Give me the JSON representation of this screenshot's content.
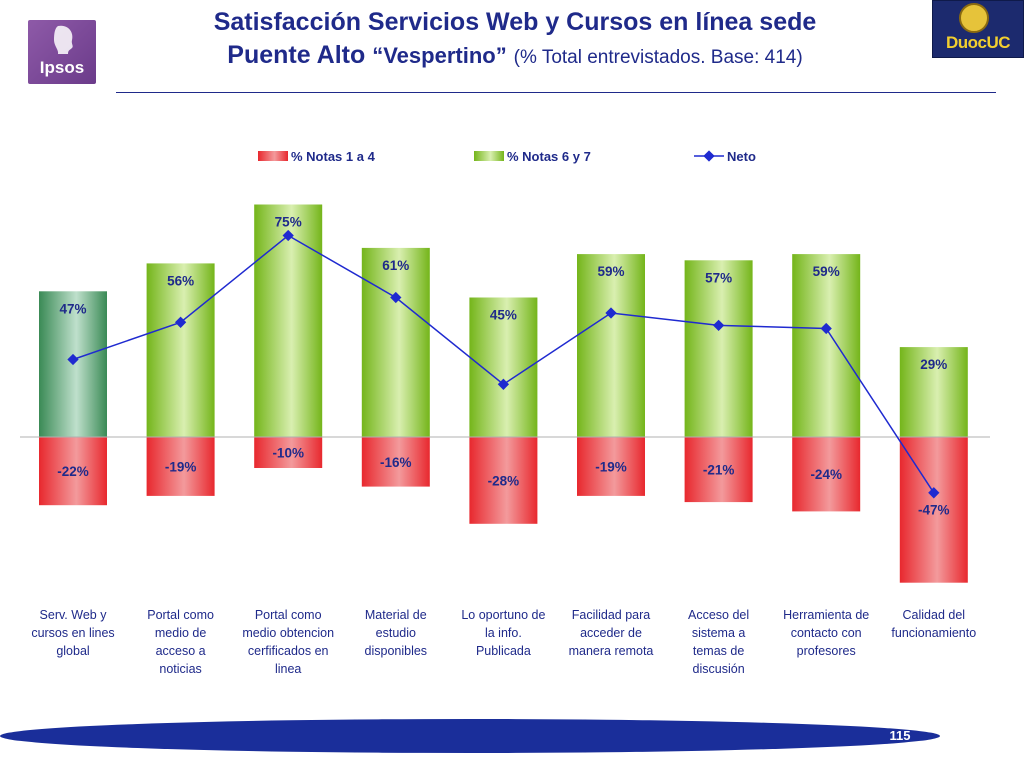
{
  "header": {
    "title_line1": "Satisfacción Servicios Web y Cursos en línea sede",
    "title_line2": "Puente Alto",
    "title_quoted": "“Vespertino”",
    "title_sub": "(% Total entrevistados. Base: 414)"
  },
  "logos": {
    "left": "Ipsos",
    "right": "DuocUC"
  },
  "footer": {
    "page_number": "115"
  },
  "colors": {
    "title": "#1f2a8a",
    "negative_bar": "#e8383d",
    "positive_bar": "#7fbf1e",
    "first_positive_bar": "#3f8f5a",
    "net_line": "#1f2ad0"
  },
  "chart_data": {
    "type": "bar",
    "categories": [
      "Serv. Web y cursos en lines global",
      "Portal como medio de acceso a noticias",
      "Portal como medio obtencion cerfificados en linea",
      "Material de estudio disponibles",
      "Lo oportuno de la info. Publicada",
      "Facilidad para acceder de manera remota",
      "Acceso del sistema a temas de discusión",
      "Herramienta de contacto con profesores",
      "Calidad del funcionamiento"
    ],
    "category_lines": [
      [
        "Serv. Web y",
        "cursos en lines",
        "global"
      ],
      [
        "Portal como",
        "medio de",
        "acceso a",
        "noticias"
      ],
      [
        "Portal como",
        "medio obtencion",
        "cerfificados en",
        "linea"
      ],
      [
        "Material de",
        "estudio",
        "disponibles"
      ],
      [
        "Lo oportuno de",
        "la info.",
        "Publicada"
      ],
      [
        "Facilidad para",
        "acceder de",
        "manera remota"
      ],
      [
        "Acceso del",
        "sistema a",
        "temas de",
        "discusión"
      ],
      [
        "Herramienta de",
        "contacto con",
        "profesores"
      ],
      [
        "Calidad del",
        "funcionamiento"
      ]
    ],
    "series": [
      {
        "name": "% Notas 1 a 4",
        "kind": "bar",
        "values": [
          -22,
          -19,
          -10,
          -16,
          -28,
          -19,
          -21,
          -24,
          -47
        ],
        "labels": [
          "-22%",
          "-19%",
          "-10%",
          "-16%",
          "-28%",
          "-19%",
          "-21%",
          "-24%",
          "-47%"
        ]
      },
      {
        "name": "% Notas 6 y 7",
        "kind": "bar",
        "values": [
          47,
          56,
          75,
          61,
          45,
          59,
          57,
          59,
          29
        ],
        "labels": [
          "47%",
          "56%",
          "75%",
          "61%",
          "45%",
          "59%",
          "57%",
          "59%",
          "29%"
        ]
      },
      {
        "name": "Neto",
        "kind": "line",
        "values": [
          25,
          37,
          65,
          45,
          17,
          40,
          36,
          35,
          -18
        ]
      }
    ],
    "legend": [
      "% Notas 1 a 4",
      "% Notas 6 y 7",
      "Neto"
    ],
    "ylim": [
      -50,
      80
    ]
  }
}
